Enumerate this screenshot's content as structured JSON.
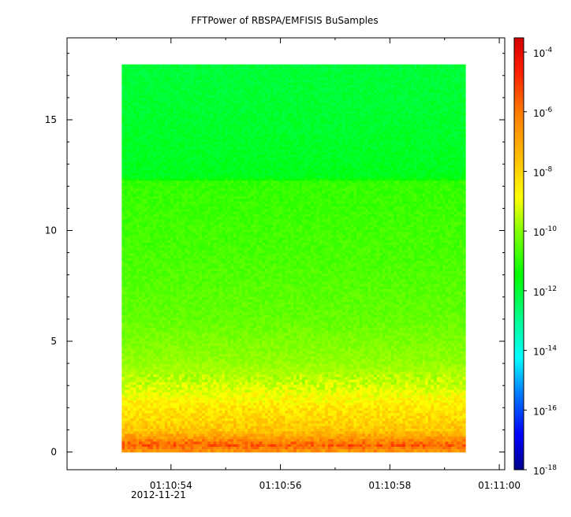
{
  "chart_data": {
    "type": "heatmap",
    "title": "FFTPower of RBSPA/EMFISIS  BuSamples",
    "xlabel": "",
    "ylabel": "",
    "date_label": "2012-11-21",
    "x_ticks": [
      "01:10:54",
      "01:10:56",
      "01:10:58",
      "01:11:00"
    ],
    "x_range": [
      "01:10:52.10",
      "01:11:00.10"
    ],
    "data_x_range": [
      "01:10:53.10",
      "01:10:59.38"
    ],
    "ylim": [
      -0.8,
      18.7
    ],
    "y_ticks": [
      0,
      5,
      10,
      15
    ],
    "y_data_max": 17.5,
    "colorbar": {
      "scale": "log",
      "range": [
        1e-18,
        0.0003
      ],
      "tick_bases": [
        "10",
        "10",
        "10",
        "10",
        "10",
        "10",
        "10",
        "10"
      ],
      "tick_exponents": [
        "-4",
        "-6",
        "-8",
        "-10",
        "-12",
        "-14",
        "-16",
        "-18"
      ],
      "tick_values_log10": [
        -4,
        -6,
        -8,
        -10,
        -12,
        -14,
        -16,
        -18
      ],
      "colormap": [
        "#00008b",
        "#0000ff",
        "#00bfff",
        "#00ffff",
        "#00ff80",
        "#00ff00",
        "#80ff00",
        "#ffff00",
        "#ffbf00",
        "#ff8000",
        "#ff0000",
        "#c80000"
      ]
    },
    "power_profile_log10": [
      {
        "y": 0.0,
        "value": -6.8
      },
      {
        "y": 0.3,
        "value": -5.8
      },
      {
        "y": 0.6,
        "value": -6.6
      },
      {
        "y": 1.0,
        "value": -7.6
      },
      {
        "y": 1.5,
        "value": -8.0
      },
      {
        "y": 2.0,
        "value": -8.3
      },
      {
        "y": 2.5,
        "value": -8.8
      },
      {
        "y": 3.0,
        "value": -9.3
      },
      {
        "y": 4.0,
        "value": -9.9
      },
      {
        "y": 6.0,
        "value": -10.4
      },
      {
        "y": 9.0,
        "value": -10.7
      },
      {
        "y": 12.2,
        "value": -10.9
      },
      {
        "y": 12.4,
        "value": -11.7
      },
      {
        "y": 15.0,
        "value": -11.9
      },
      {
        "y": 17.5,
        "value": -12.0
      }
    ]
  }
}
